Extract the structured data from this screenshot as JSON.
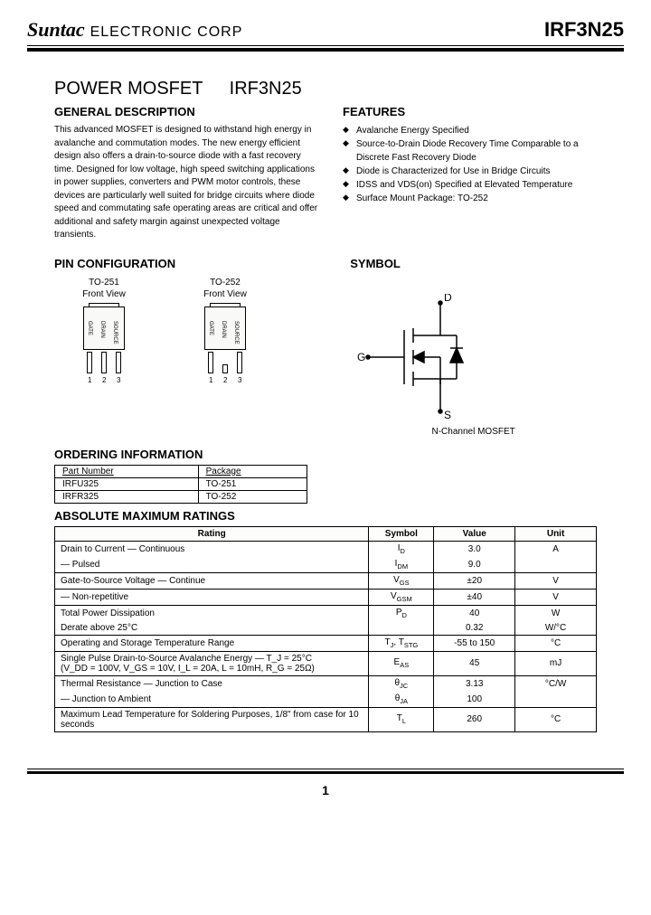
{
  "header": {
    "logo": "Suntac",
    "corp": "ELECTRONIC CORP",
    "partno": "IRF3N25"
  },
  "title": {
    "prefix": "POWER MOSFET",
    "part": "IRF3N25"
  },
  "general": {
    "heading": "GENERAL DESCRIPTION",
    "text": "This advanced MOSFET is designed to withstand high energy in avalanche and commutation modes. The new energy efficient design also offers a drain-to-source diode with a fast recovery time. Designed for low voltage, high speed switching applications in power supplies, converters and PWM motor controls, these devices are particularly well suited for bridge circuits where diode speed and commutating safe operating areas are critical and offer additional and safety margin against unexpected voltage transients."
  },
  "features": {
    "heading": "FEATURES",
    "items": [
      "Avalanche Energy Specified",
      "Source-to-Drain Diode Recovery Time Comparable to a Discrete Fast Recovery Diode",
      "Diode is Characterized for Use in Bridge Circuits",
      "IDSS and VDS(on) Specified at Elevated Temperature",
      "Surface Mount Package: TO-252"
    ]
  },
  "pinconfig": {
    "heading": "PIN CONFIGURATION",
    "packages": [
      {
        "name": "TO-251",
        "sub": "Front View",
        "pins": [
          "GATE",
          "DRAIN",
          "SOURCE"
        ],
        "short_center": false
      },
      {
        "name": "TO-252",
        "sub": "Front View",
        "pins": [
          "GATE",
          "DRAIN",
          "SOURCE"
        ],
        "short_center": true
      }
    ]
  },
  "symbol": {
    "heading": "SYMBOL",
    "caption": "N-Channel MOSFET",
    "labels": {
      "d": "D",
      "g": "G",
      "s": "S"
    }
  },
  "ordering": {
    "heading": "ORDERING INFORMATION",
    "columns": [
      "Part Number",
      "Package"
    ],
    "rows": [
      [
        "IRFU325",
        "TO-251"
      ],
      [
        "IRFR325",
        "TO-252"
      ]
    ]
  },
  "ratings": {
    "heading": "ABSOLUTE MAXIMUM RATINGS",
    "columns": [
      "Rating",
      "Symbol",
      "Value",
      "Unit"
    ],
    "rows": [
      {
        "rating": "Drain to Current  —  Continuous",
        "symbol": "I_D",
        "value": "3.0",
        "unit": "A",
        "merge_bottom": true
      },
      {
        "rating": "                              —  Pulsed",
        "symbol": "I_DM",
        "value": "9.0",
        "unit": "",
        "merge_top": true
      },
      {
        "rating": "Gate-to-Source Voltage  —  Continue",
        "symbol": "V_GS",
        "value": "±20",
        "unit": "V"
      },
      {
        "rating": "                                        —  Non-repetitive",
        "symbol": "V_GSM",
        "value": "±40",
        "unit": "V"
      },
      {
        "rating": "Total Power Dissipation",
        "symbol": "P_D",
        "value": "40",
        "unit": "W",
        "merge_bottom": true
      },
      {
        "rating": "  Derate above 25°C",
        "symbol": "",
        "value": "0.32",
        "unit": "W/°C",
        "merge_top": true
      },
      {
        "rating": "Operating and Storage Temperature Range",
        "symbol": "T_J, T_STG",
        "value": "-55 to 150",
        "unit": "°C"
      },
      {
        "rating": "Single Pulse Drain-to-Source Avalanche Energy  —  T_J = 25°C\n(V_DD = 100V, V_GS = 10V, I_L = 20A, L = 10mH, R_G = 25Ω)",
        "symbol": "E_AS",
        "value": "45",
        "unit": "mJ"
      },
      {
        "rating": "Thermal Resistance   —  Junction to Case",
        "symbol": "θ_JC",
        "value": "3.13",
        "unit": "°C/W",
        "merge_bottom": true
      },
      {
        "rating": "                                  —  Junction to Ambient",
        "symbol": "θ_JA",
        "value": "100",
        "unit": "",
        "merge_top": true
      },
      {
        "rating": "Maximum Lead Temperature for Soldering Purposes, 1/8\" from case for 10 seconds",
        "symbol": "T_L",
        "value": "260",
        "unit": "°C"
      }
    ]
  },
  "page_number": "1",
  "colors": {
    "text": "#000000",
    "bg": "#ffffff",
    "rule": "#000000"
  }
}
